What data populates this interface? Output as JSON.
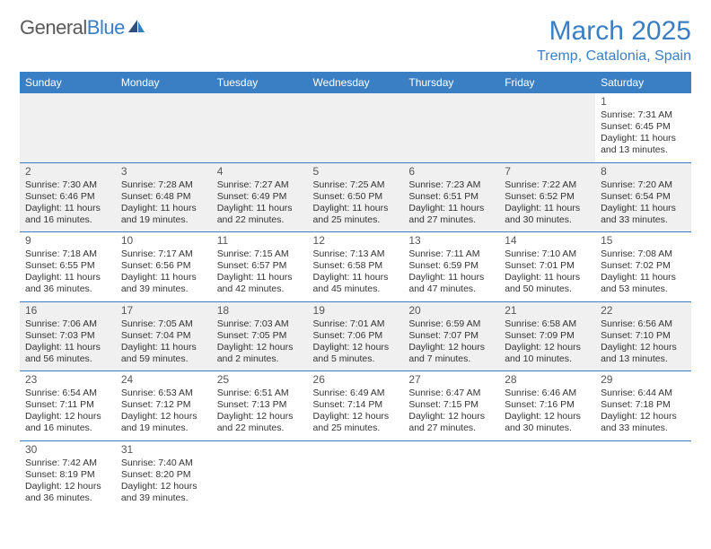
{
  "logo": {
    "part1": "General",
    "part2": "Blue"
  },
  "title": "March 2025",
  "location": "Tremp, Catalonia, Spain",
  "colors": {
    "accent": "#3a7fc4",
    "gray_row": "#f0f0f0",
    "text": "#333333",
    "header_text": "#ffffff"
  },
  "weekdays": [
    "Sunday",
    "Monday",
    "Tuesday",
    "Wednesday",
    "Thursday",
    "Friday",
    "Saturday"
  ],
  "grid": [
    [
      {
        "n": "",
        "sr": "",
        "ss": "",
        "dl": ""
      },
      {
        "n": "",
        "sr": "",
        "ss": "",
        "dl": ""
      },
      {
        "n": "",
        "sr": "",
        "ss": "",
        "dl": ""
      },
      {
        "n": "",
        "sr": "",
        "ss": "",
        "dl": ""
      },
      {
        "n": "",
        "sr": "",
        "ss": "",
        "dl": ""
      },
      {
        "n": "",
        "sr": "",
        "ss": "",
        "dl": ""
      },
      {
        "n": "1",
        "sr": "Sunrise: 7:31 AM",
        "ss": "Sunset: 6:45 PM",
        "dl": "Daylight: 11 hours and 13 minutes."
      }
    ],
    [
      {
        "n": "2",
        "sr": "Sunrise: 7:30 AM",
        "ss": "Sunset: 6:46 PM",
        "dl": "Daylight: 11 hours and 16 minutes."
      },
      {
        "n": "3",
        "sr": "Sunrise: 7:28 AM",
        "ss": "Sunset: 6:48 PM",
        "dl": "Daylight: 11 hours and 19 minutes."
      },
      {
        "n": "4",
        "sr": "Sunrise: 7:27 AM",
        "ss": "Sunset: 6:49 PM",
        "dl": "Daylight: 11 hours and 22 minutes."
      },
      {
        "n": "5",
        "sr": "Sunrise: 7:25 AM",
        "ss": "Sunset: 6:50 PM",
        "dl": "Daylight: 11 hours and 25 minutes."
      },
      {
        "n": "6",
        "sr": "Sunrise: 7:23 AM",
        "ss": "Sunset: 6:51 PM",
        "dl": "Daylight: 11 hours and 27 minutes."
      },
      {
        "n": "7",
        "sr": "Sunrise: 7:22 AM",
        "ss": "Sunset: 6:52 PM",
        "dl": "Daylight: 11 hours and 30 minutes."
      },
      {
        "n": "8",
        "sr": "Sunrise: 7:20 AM",
        "ss": "Sunset: 6:54 PM",
        "dl": "Daylight: 11 hours and 33 minutes."
      }
    ],
    [
      {
        "n": "9",
        "sr": "Sunrise: 7:18 AM",
        "ss": "Sunset: 6:55 PM",
        "dl": "Daylight: 11 hours and 36 minutes."
      },
      {
        "n": "10",
        "sr": "Sunrise: 7:17 AM",
        "ss": "Sunset: 6:56 PM",
        "dl": "Daylight: 11 hours and 39 minutes."
      },
      {
        "n": "11",
        "sr": "Sunrise: 7:15 AM",
        "ss": "Sunset: 6:57 PM",
        "dl": "Daylight: 11 hours and 42 minutes."
      },
      {
        "n": "12",
        "sr": "Sunrise: 7:13 AM",
        "ss": "Sunset: 6:58 PM",
        "dl": "Daylight: 11 hours and 45 minutes."
      },
      {
        "n": "13",
        "sr": "Sunrise: 7:11 AM",
        "ss": "Sunset: 6:59 PM",
        "dl": "Daylight: 11 hours and 47 minutes."
      },
      {
        "n": "14",
        "sr": "Sunrise: 7:10 AM",
        "ss": "Sunset: 7:01 PM",
        "dl": "Daylight: 11 hours and 50 minutes."
      },
      {
        "n": "15",
        "sr": "Sunrise: 7:08 AM",
        "ss": "Sunset: 7:02 PM",
        "dl": "Daylight: 11 hours and 53 minutes."
      }
    ],
    [
      {
        "n": "16",
        "sr": "Sunrise: 7:06 AM",
        "ss": "Sunset: 7:03 PM",
        "dl": "Daylight: 11 hours and 56 minutes."
      },
      {
        "n": "17",
        "sr": "Sunrise: 7:05 AM",
        "ss": "Sunset: 7:04 PM",
        "dl": "Daylight: 11 hours and 59 minutes."
      },
      {
        "n": "18",
        "sr": "Sunrise: 7:03 AM",
        "ss": "Sunset: 7:05 PM",
        "dl": "Daylight: 12 hours and 2 minutes."
      },
      {
        "n": "19",
        "sr": "Sunrise: 7:01 AM",
        "ss": "Sunset: 7:06 PM",
        "dl": "Daylight: 12 hours and 5 minutes."
      },
      {
        "n": "20",
        "sr": "Sunrise: 6:59 AM",
        "ss": "Sunset: 7:07 PM",
        "dl": "Daylight: 12 hours and 7 minutes."
      },
      {
        "n": "21",
        "sr": "Sunrise: 6:58 AM",
        "ss": "Sunset: 7:09 PM",
        "dl": "Daylight: 12 hours and 10 minutes."
      },
      {
        "n": "22",
        "sr": "Sunrise: 6:56 AM",
        "ss": "Sunset: 7:10 PM",
        "dl": "Daylight: 12 hours and 13 minutes."
      }
    ],
    [
      {
        "n": "23",
        "sr": "Sunrise: 6:54 AM",
        "ss": "Sunset: 7:11 PM",
        "dl": "Daylight: 12 hours and 16 minutes."
      },
      {
        "n": "24",
        "sr": "Sunrise: 6:53 AM",
        "ss": "Sunset: 7:12 PM",
        "dl": "Daylight: 12 hours and 19 minutes."
      },
      {
        "n": "25",
        "sr": "Sunrise: 6:51 AM",
        "ss": "Sunset: 7:13 PM",
        "dl": "Daylight: 12 hours and 22 minutes."
      },
      {
        "n": "26",
        "sr": "Sunrise: 6:49 AM",
        "ss": "Sunset: 7:14 PM",
        "dl": "Daylight: 12 hours and 25 minutes."
      },
      {
        "n": "27",
        "sr": "Sunrise: 6:47 AM",
        "ss": "Sunset: 7:15 PM",
        "dl": "Daylight: 12 hours and 27 minutes."
      },
      {
        "n": "28",
        "sr": "Sunrise: 6:46 AM",
        "ss": "Sunset: 7:16 PM",
        "dl": "Daylight: 12 hours and 30 minutes."
      },
      {
        "n": "29",
        "sr": "Sunrise: 6:44 AM",
        "ss": "Sunset: 7:18 PM",
        "dl": "Daylight: 12 hours and 33 minutes."
      }
    ],
    [
      {
        "n": "30",
        "sr": "Sunrise: 7:42 AM",
        "ss": "Sunset: 8:19 PM",
        "dl": "Daylight: 12 hours and 36 minutes."
      },
      {
        "n": "31",
        "sr": "Sunrise: 7:40 AM",
        "ss": "Sunset: 8:20 PM",
        "dl": "Daylight: 12 hours and 39 minutes."
      },
      {
        "n": "",
        "sr": "",
        "ss": "",
        "dl": ""
      },
      {
        "n": "",
        "sr": "",
        "ss": "",
        "dl": ""
      },
      {
        "n": "",
        "sr": "",
        "ss": "",
        "dl": ""
      },
      {
        "n": "",
        "sr": "",
        "ss": "",
        "dl": ""
      },
      {
        "n": "",
        "sr": "",
        "ss": "",
        "dl": ""
      }
    ]
  ]
}
